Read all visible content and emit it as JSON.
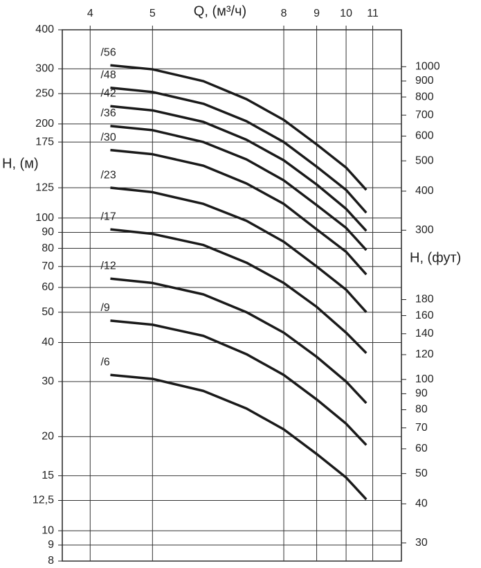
{
  "chart_data": {
    "type": "line",
    "x_label": "Q, (м³/ч)",
    "y_label": "H, (м)",
    "y2_label": "H, (фут)",
    "xscale": "log",
    "yscale": "log",
    "y2scale": "log",
    "grid": true,
    "xlim": [
      3.62,
      12.19
    ],
    "xticks": [
      4,
      5,
      8,
      9,
      10,
      11
    ],
    "ylim": [
      8,
      400
    ],
    "yticks": [
      8,
      9,
      10,
      {
        "value": 12.5,
        "label": "12,5"
      },
      15,
      20,
      30,
      40,
      50,
      60,
      70,
      80,
      90,
      100,
      125,
      175,
      200,
      250,
      300,
      400
    ],
    "y2lim": [
      26.25,
      1312.3
    ],
    "y2ticks": [
      30,
      40,
      50,
      60,
      70,
      80,
      90,
      100,
      120,
      140,
      160,
      180,
      300,
      400,
      500,
      600,
      700,
      800,
      900,
      1000
    ],
    "x": [
      4.3,
      5,
      6,
      7,
      8,
      9,
      10,
      10.75
    ],
    "series": [
      {
        "name": "/56",
        "color": "#1a1a1a",
        "values": [
          308,
          299,
          274,
          240,
          206,
          172,
          145,
          123
        ]
      },
      {
        "name": "/48",
        "color": "#1a1a1a",
        "values": [
          261,
          253,
          232,
          204,
          175,
          146,
          123,
          104
        ]
      },
      {
        "name": "/42",
        "color": "#1a1a1a",
        "values": [
          228,
          221,
          203,
          178,
          153,
          128,
          107,
          91
        ]
      },
      {
        "name": "/36",
        "color": "#1a1a1a",
        "values": [
          197,
          191,
          175,
          154,
          132,
          110,
          93,
          79
        ]
      },
      {
        "name": "/30",
        "color": "#1a1a1a",
        "values": [
          165,
          160,
          147,
          129,
          111,
          92,
          78,
          66
        ]
      },
      {
        "name": "/23",
        "color": "#1a1a1a",
        "values": [
          125,
          121,
          111,
          98,
          84,
          70,
          59,
          50
        ]
      },
      {
        "name": "/17",
        "color": "#1a1a1a",
        "values": [
          92,
          89,
          82,
          72,
          62,
          52,
          43,
          37
        ]
      },
      {
        "name": "/12",
        "color": "#1a1a1a",
        "values": [
          64,
          62,
          57,
          50,
          43,
          36,
          30,
          25.6
        ]
      },
      {
        "name": "/9",
        "color": "#1a1a1a",
        "values": [
          47,
          45.6,
          42,
          36.7,
          31.5,
          26.3,
          22,
          18.8
        ]
      },
      {
        "name": "/6",
        "color": "#1a1a1a",
        "values": [
          31.5,
          30.6,
          28,
          24.6,
          21.1,
          17.6,
          14.8,
          12.6
        ]
      }
    ]
  }
}
